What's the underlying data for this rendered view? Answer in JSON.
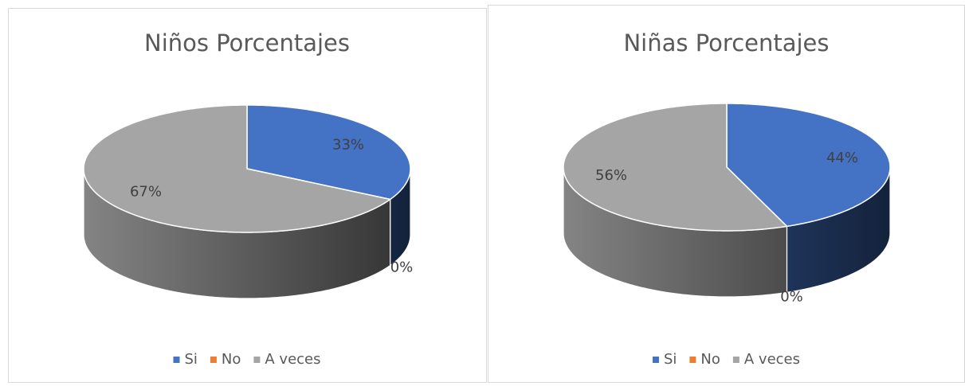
{
  "chart_data": [
    {
      "type": "pie",
      "title": "Niños Porcentajes",
      "categories": [
        "Si",
        "No",
        "A veces"
      ],
      "values": [
        33,
        0,
        67
      ],
      "value_labels": [
        "33%",
        "0%",
        "67%"
      ],
      "colors": [
        "#4472c4",
        "#ed7d31",
        "#a5a5a5"
      ]
    },
    {
      "type": "pie",
      "title": "Niñas Porcentajes",
      "categories": [
        "Si",
        "No",
        "A veces"
      ],
      "values": [
        44,
        0,
        56
      ],
      "value_labels": [
        "44%",
        "0%",
        "56%"
      ],
      "colors": [
        "#4472c4",
        "#ed7d31",
        "#a5a5a5"
      ]
    }
  ]
}
